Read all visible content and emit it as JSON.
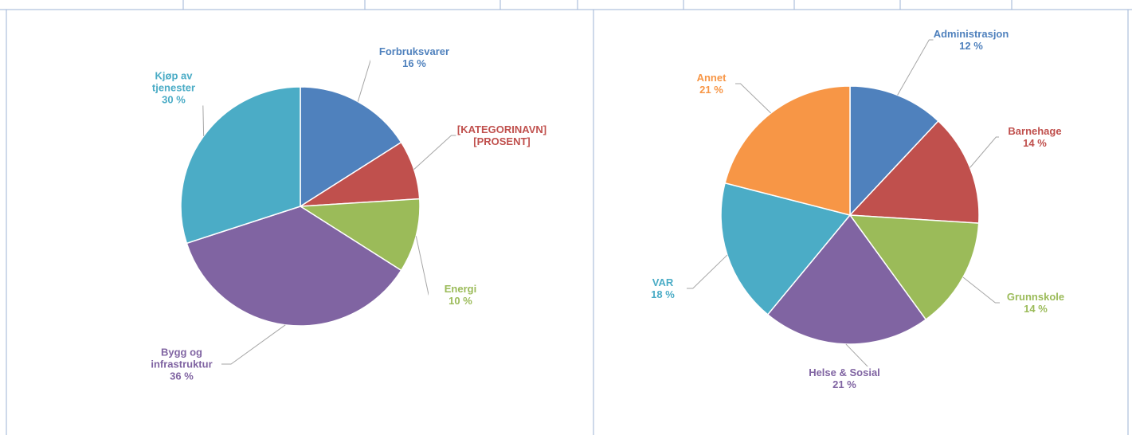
{
  "chart_data": [
    {
      "type": "pie",
      "categories": [
        "Forbruksvarer",
        "[KATEGORINAVN]",
        "Energi",
        "Bygg og infrastruktur",
        "Kjøp av tjenester"
      ],
      "values": [
        16,
        8,
        10,
        36,
        30
      ],
      "value_labels": [
        "16 %",
        "[PROSENT]",
        "10 %",
        "36 %",
        "30 %"
      ],
      "colors": [
        "#4f81bd",
        "#c0504d",
        "#9bbb59",
        "#8064a2",
        "#4bacc6"
      ]
    },
    {
      "type": "pie",
      "categories": [
        "Administrasjon",
        "Barnehage",
        "Grunnskole",
        "Helse & Sosial",
        "VAR",
        "Annet"
      ],
      "values": [
        12,
        14,
        14,
        21,
        18,
        21
      ],
      "value_labels": [
        "12 %",
        "14 %",
        "14 %",
        "21 %",
        "18 %",
        "21 %"
      ],
      "colors": [
        "#4f81bd",
        "#c0504d",
        "#9bbb59",
        "#8064a2",
        "#4bacc6",
        "#f79646"
      ]
    }
  ]
}
